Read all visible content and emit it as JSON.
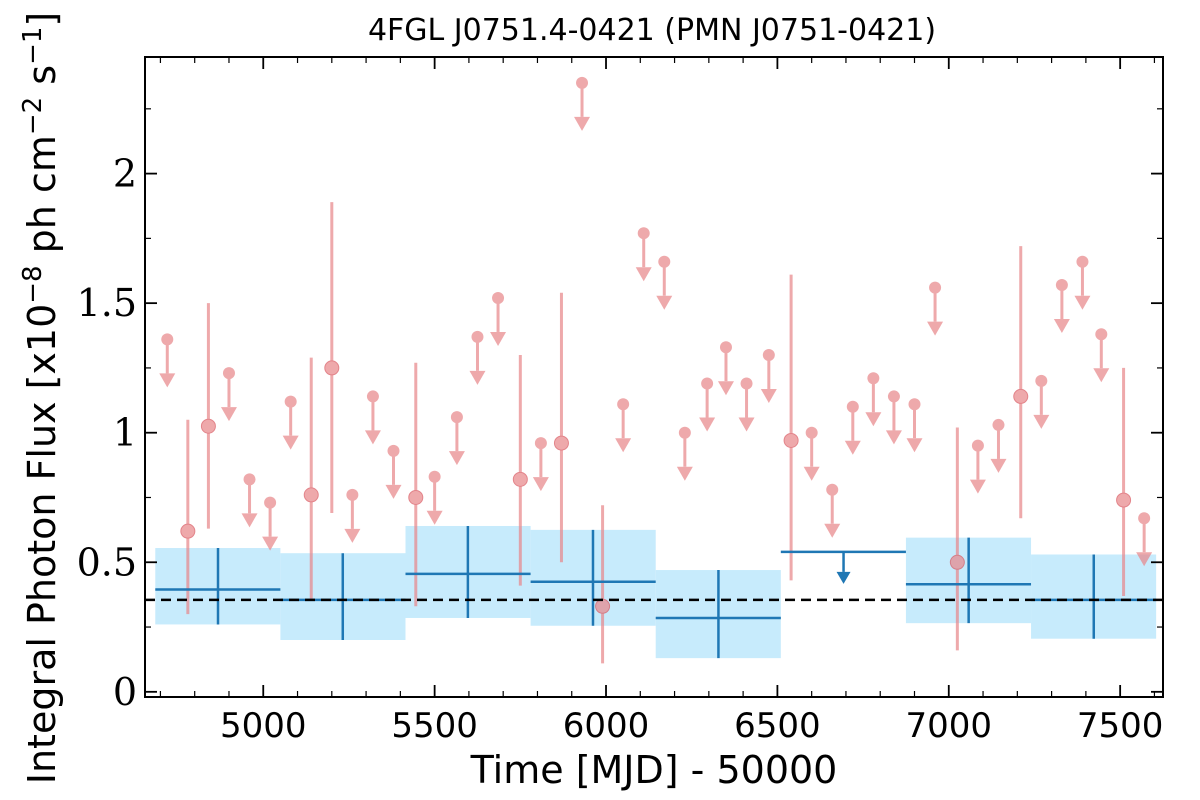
{
  "chart_data": {
    "type": "scatter",
    "title": "4FGL J0751.4-0421 (PMN J0751-0421)",
    "xlabel": "Time [MJD] - 50000",
    "ylabel_parts": {
      "prefix": "Integral Photon Flux [x10",
      "exp1": "−8",
      "middle": " ph cm",
      "exp2": "−2",
      "middle2": " s",
      "exp3": "−1",
      "suffix": "]"
    },
    "xlim": [
      4655,
      7625
    ],
    "ylim": [
      -0.02,
      2.45
    ],
    "x_ticks": [
      5000,
      5500,
      6000,
      6500,
      7000,
      7500
    ],
    "x_tick_labels": [
      "5000",
      "5500",
      "6000",
      "6500",
      "7000",
      "7500"
    ],
    "y_ticks": [
      0,
      0.5,
      1,
      1.5,
      2
    ],
    "y_tick_labels": [
      "0",
      "0.5",
      "1",
      "1.5",
      "2"
    ],
    "mean_flux": 0.355,
    "colors": {
      "short_bin": "#e8888c",
      "long_bin": "#1f77b4",
      "error_band": "#c7ebfc",
      "mean_line": "#000000"
    },
    "short_bin_detections": [
      {
        "x": 4780,
        "y": 0.62,
        "ylo": 0.3,
        "yhi": 1.05
      },
      {
        "x": 4840,
        "y": 1.025,
        "ylo": 0.63,
        "yhi": 1.5
      },
      {
        "x": 5140,
        "y": 0.76,
        "ylo": 0.36,
        "yhi": 1.29
      },
      {
        "x": 5200,
        "y": 1.25,
        "ylo": 0.69,
        "yhi": 1.89
      },
      {
        "x": 5445,
        "y": 0.75,
        "ylo": 0.33,
        "yhi": 1.27
      },
      {
        "x": 5750,
        "y": 0.82,
        "ylo": 0.41,
        "yhi": 1.3
      },
      {
        "x": 5870,
        "y": 0.96,
        "ylo": 0.5,
        "yhi": 1.54
      },
      {
        "x": 5990,
        "y": 0.33,
        "ylo": 0.11,
        "yhi": 0.72
      },
      {
        "x": 6540,
        "y": 0.97,
        "ylo": 0.43,
        "yhi": 1.61
      },
      {
        "x": 7025,
        "y": 0.5,
        "ylo": 0.16,
        "yhi": 1.02
      },
      {
        "x": 7210,
        "y": 1.14,
        "ylo": 0.67,
        "yhi": 1.72
      },
      {
        "x": 7510,
        "y": 0.74,
        "ylo": 0.37,
        "yhi": 1.25
      }
    ],
    "short_bin_upper_limits": [
      {
        "x": 4720,
        "y": 1.36
      },
      {
        "x": 4900,
        "y": 1.23
      },
      {
        "x": 4960,
        "y": 0.82
      },
      {
        "x": 5020,
        "y": 0.73
      },
      {
        "x": 5080,
        "y": 1.12
      },
      {
        "x": 5260,
        "y": 0.76
      },
      {
        "x": 5320,
        "y": 1.14
      },
      {
        "x": 5380,
        "y": 0.93
      },
      {
        "x": 5500,
        "y": 0.83
      },
      {
        "x": 5565,
        "y": 1.06
      },
      {
        "x": 5625,
        "y": 1.37
      },
      {
        "x": 5685,
        "y": 1.52
      },
      {
        "x": 5810,
        "y": 0.96
      },
      {
        "x": 5930,
        "y": 2.35
      },
      {
        "x": 6050,
        "y": 1.11
      },
      {
        "x": 6110,
        "y": 1.77
      },
      {
        "x": 6170,
        "y": 1.66
      },
      {
        "x": 6230,
        "y": 1.0
      },
      {
        "x": 6295,
        "y": 1.19
      },
      {
        "x": 6350,
        "y": 1.33
      },
      {
        "x": 6410,
        "y": 1.19
      },
      {
        "x": 6475,
        "y": 1.3
      },
      {
        "x": 6600,
        "y": 1.0
      },
      {
        "x": 6660,
        "y": 0.78
      },
      {
        "x": 6720,
        "y": 1.1
      },
      {
        "x": 6780,
        "y": 1.21
      },
      {
        "x": 6840,
        "y": 1.14
      },
      {
        "x": 6900,
        "y": 1.11
      },
      {
        "x": 6960,
        "y": 1.56
      },
      {
        "x": 7085,
        "y": 0.95
      },
      {
        "x": 7145,
        "y": 1.03
      },
      {
        "x": 7270,
        "y": 1.2
      },
      {
        "x": 7330,
        "y": 1.57
      },
      {
        "x": 7390,
        "y": 1.66
      },
      {
        "x": 7445,
        "y": 1.38
      },
      {
        "x": 7570,
        "y": 0.67
      }
    ],
    "long_bin_detections": [
      {
        "x": 4868,
        "xlo": 4685,
        "xhi": 5050,
        "y": 0.395,
        "ylo": 0.26,
        "yhi": 0.555
      },
      {
        "x": 5232,
        "xlo": 5050,
        "xhi": 5415,
        "y": 0.355,
        "ylo": 0.2,
        "yhi": 0.535
      },
      {
        "x": 5597,
        "xlo": 5415,
        "xhi": 5780,
        "y": 0.455,
        "ylo": 0.285,
        "yhi": 0.64
      },
      {
        "x": 5962,
        "xlo": 5780,
        "xhi": 6145,
        "y": 0.425,
        "ylo": 0.255,
        "yhi": 0.625
      },
      {
        "x": 6328,
        "xlo": 6145,
        "xhi": 6510,
        "y": 0.285,
        "ylo": 0.13,
        "yhi": 0.47
      },
      {
        "x": 7058,
        "xlo": 6875,
        "xhi": 7240,
        "y": 0.415,
        "ylo": 0.265,
        "yhi": 0.595
      },
      {
        "x": 7423,
        "xlo": 7240,
        "xhi": 7605,
        "y": 0.355,
        "ylo": 0.205,
        "yhi": 0.53
      }
    ],
    "long_bin_upper_limits": [
      {
        "x": 6693,
        "xlo": 6510,
        "xhi": 6875,
        "y": 0.54
      }
    ]
  }
}
